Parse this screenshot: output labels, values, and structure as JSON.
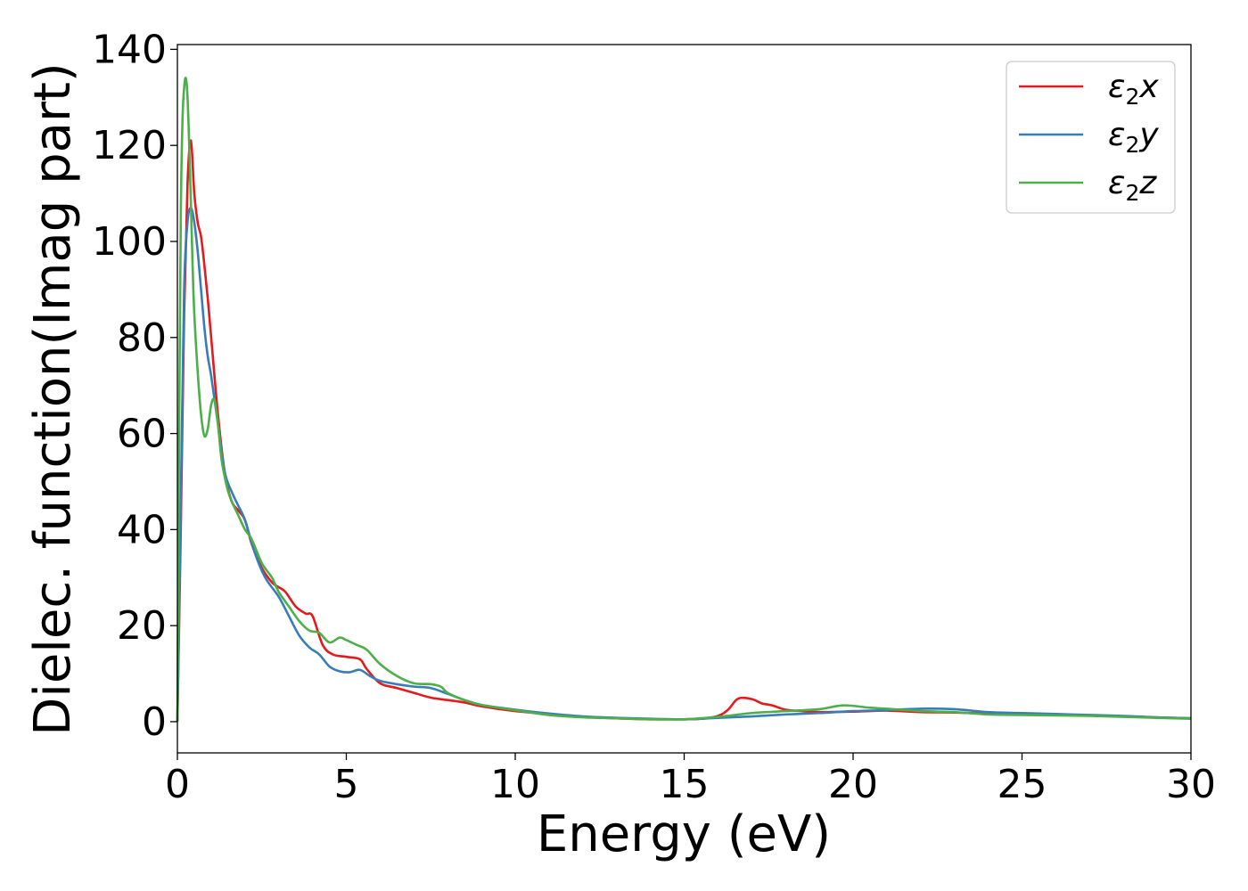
{
  "chart_data": {
    "type": "line",
    "title": "",
    "xlabel": "Energy (eV)",
    "ylabel": "Dielec. function(Imag part)",
    "xlim": [
      0,
      30
    ],
    "ylim": [
      -6.5,
      141
    ],
    "xticks": [
      0,
      5,
      10,
      15,
      20,
      25,
      30
    ],
    "yticks": [
      0,
      20,
      40,
      60,
      80,
      100,
      120,
      140
    ],
    "grid": false,
    "legend_position": "top-right",
    "series": [
      {
        "name": "ε₂x",
        "legend_base": "ε",
        "legend_sub": "2",
        "legend_tail": "x",
        "color": "#e41a1c",
        "x": [
          0,
          0.1,
          0.2,
          0.3,
          0.4,
          0.5,
          0.6,
          0.7,
          0.8,
          0.9,
          1.0,
          1.2,
          1.4,
          1.6,
          1.8,
          2.0,
          2.2,
          2.5,
          2.8,
          3.0,
          3.2,
          3.5,
          3.8,
          4.0,
          4.3,
          4.6,
          5.0,
          5.4,
          5.6,
          6.0,
          6.5,
          7.0,
          7.5,
          8.0,
          8.5,
          9.0,
          10.0,
          11.0,
          12.0,
          13.0,
          14.0,
          15.0,
          15.5,
          16.0,
          16.3,
          16.6,
          17.0,
          17.3,
          17.6,
          18.0,
          18.5,
          19.0,
          20.0,
          21.0,
          22.0,
          23.0,
          24.0,
          25.0,
          26.0,
          27.0,
          28.0,
          29.0,
          30.0
        ],
        "y": [
          0,
          40,
          85,
          112,
          121,
          110,
          104,
          101,
          95,
          88,
          80,
          64,
          52,
          46,
          44,
          42,
          37,
          32,
          29,
          28,
          27,
          24,
          22.5,
          22,
          16,
          14,
          13.5,
          13,
          11,
          8,
          7,
          6,
          5,
          4.5,
          4,
          3.2,
          2.2,
          1.6,
          1.0,
          0.7,
          0.5,
          0.5,
          0.6,
          1.2,
          2.5,
          4.8,
          4.7,
          3.8,
          3.4,
          2.5,
          2.2,
          2.0,
          2.1,
          2.3,
          2.0,
          1.9,
          1.7,
          1.6,
          1.4,
          1.3,
          1.1,
          0.9,
          0.7
        ]
      },
      {
        "name": "ε₂y",
        "legend_base": "ε",
        "legend_sub": "2",
        "legend_tail": "y",
        "color": "#377eb8",
        "x": [
          0,
          0.1,
          0.2,
          0.3,
          0.4,
          0.5,
          0.6,
          0.7,
          0.8,
          0.9,
          1.0,
          1.2,
          1.4,
          1.6,
          1.8,
          2.0,
          2.3,
          2.6,
          3.0,
          3.3,
          3.6,
          3.9,
          4.2,
          4.5,
          4.8,
          5.1,
          5.4,
          5.7,
          6.0,
          6.5,
          7.0,
          7.5,
          8.0,
          8.5,
          9.0,
          10.0,
          11.0,
          12.0,
          13.0,
          14.0,
          15.0,
          16.0,
          17.0,
          18.0,
          19.0,
          20.0,
          21.0,
          22.0,
          23.0,
          24.0,
          25.0,
          26.0,
          27.0,
          28.0,
          29.0,
          30.0
        ],
        "y": [
          0,
          45,
          90,
          104,
          107,
          104,
          98,
          90,
          82,
          76,
          72,
          62,
          52,
          48,
          45,
          42,
          35,
          30,
          26,
          22,
          18,
          15.5,
          14,
          11.5,
          10.5,
          10.3,
          10.8,
          9.5,
          8.5,
          7.8,
          7.3,
          7.0,
          5.8,
          4.5,
          3.5,
          2.5,
          1.7,
          1.1,
          0.8,
          0.6,
          0.5,
          0.8,
          1.1,
          1.5,
          1.8,
          2.2,
          2.4,
          2.7,
          2.6,
          2.0,
          1.8,
          1.6,
          1.4,
          1.2,
          0.9,
          0.7
        ]
      },
      {
        "name": "ε₂z",
        "legend_base": "ε",
        "legend_sub": "2",
        "legend_tail": "z",
        "color": "#4daf4a",
        "x": [
          0,
          0.05,
          0.1,
          0.15,
          0.2,
          0.25,
          0.3,
          0.35,
          0.4,
          0.45,
          0.5,
          0.6,
          0.7,
          0.8,
          0.9,
          1.0,
          1.1,
          1.2,
          1.3,
          1.4,
          1.5,
          1.6,
          1.8,
          2.0,
          2.2,
          2.5,
          2.8,
          3.0,
          3.3,
          3.6,
          3.9,
          4.2,
          4.5,
          4.8,
          5.0,
          5.3,
          5.6,
          6.0,
          6.5,
          7.0,
          7.5,
          7.8,
          8.0,
          8.5,
          9.0,
          10.0,
          11.0,
          12.0,
          13.0,
          14.0,
          15.0,
          16.0,
          17.0,
          18.0,
          19.0,
          19.7,
          20.5,
          21.0,
          22.0,
          23.0,
          24.0,
          25.0,
          26.0,
          27.0,
          28.0,
          29.0,
          30.0
        ],
        "y": [
          0,
          60,
          105,
          125,
          132,
          134,
          130,
          120,
          108,
          95,
          85,
          73,
          64,
          59.5,
          61,
          66,
          67,
          62,
          55,
          51,
          48,
          46,
          43,
          40,
          38,
          33,
          30,
          27,
          24,
          21,
          19,
          18.5,
          16.5,
          17.5,
          17,
          16,
          15,
          12,
          9.5,
          8,
          7.8,
          7.3,
          6,
          4.5,
          3.5,
          2.4,
          1.4,
          0.9,
          0.7,
          0.5,
          0.5,
          1.0,
          1.8,
          2.2,
          2.6,
          3.4,
          2.9,
          2.7,
          2.2,
          2.0,
          1.5,
          1.4,
          1.3,
          1.2,
          1.0,
          0.8,
          0.6
        ]
      }
    ]
  }
}
